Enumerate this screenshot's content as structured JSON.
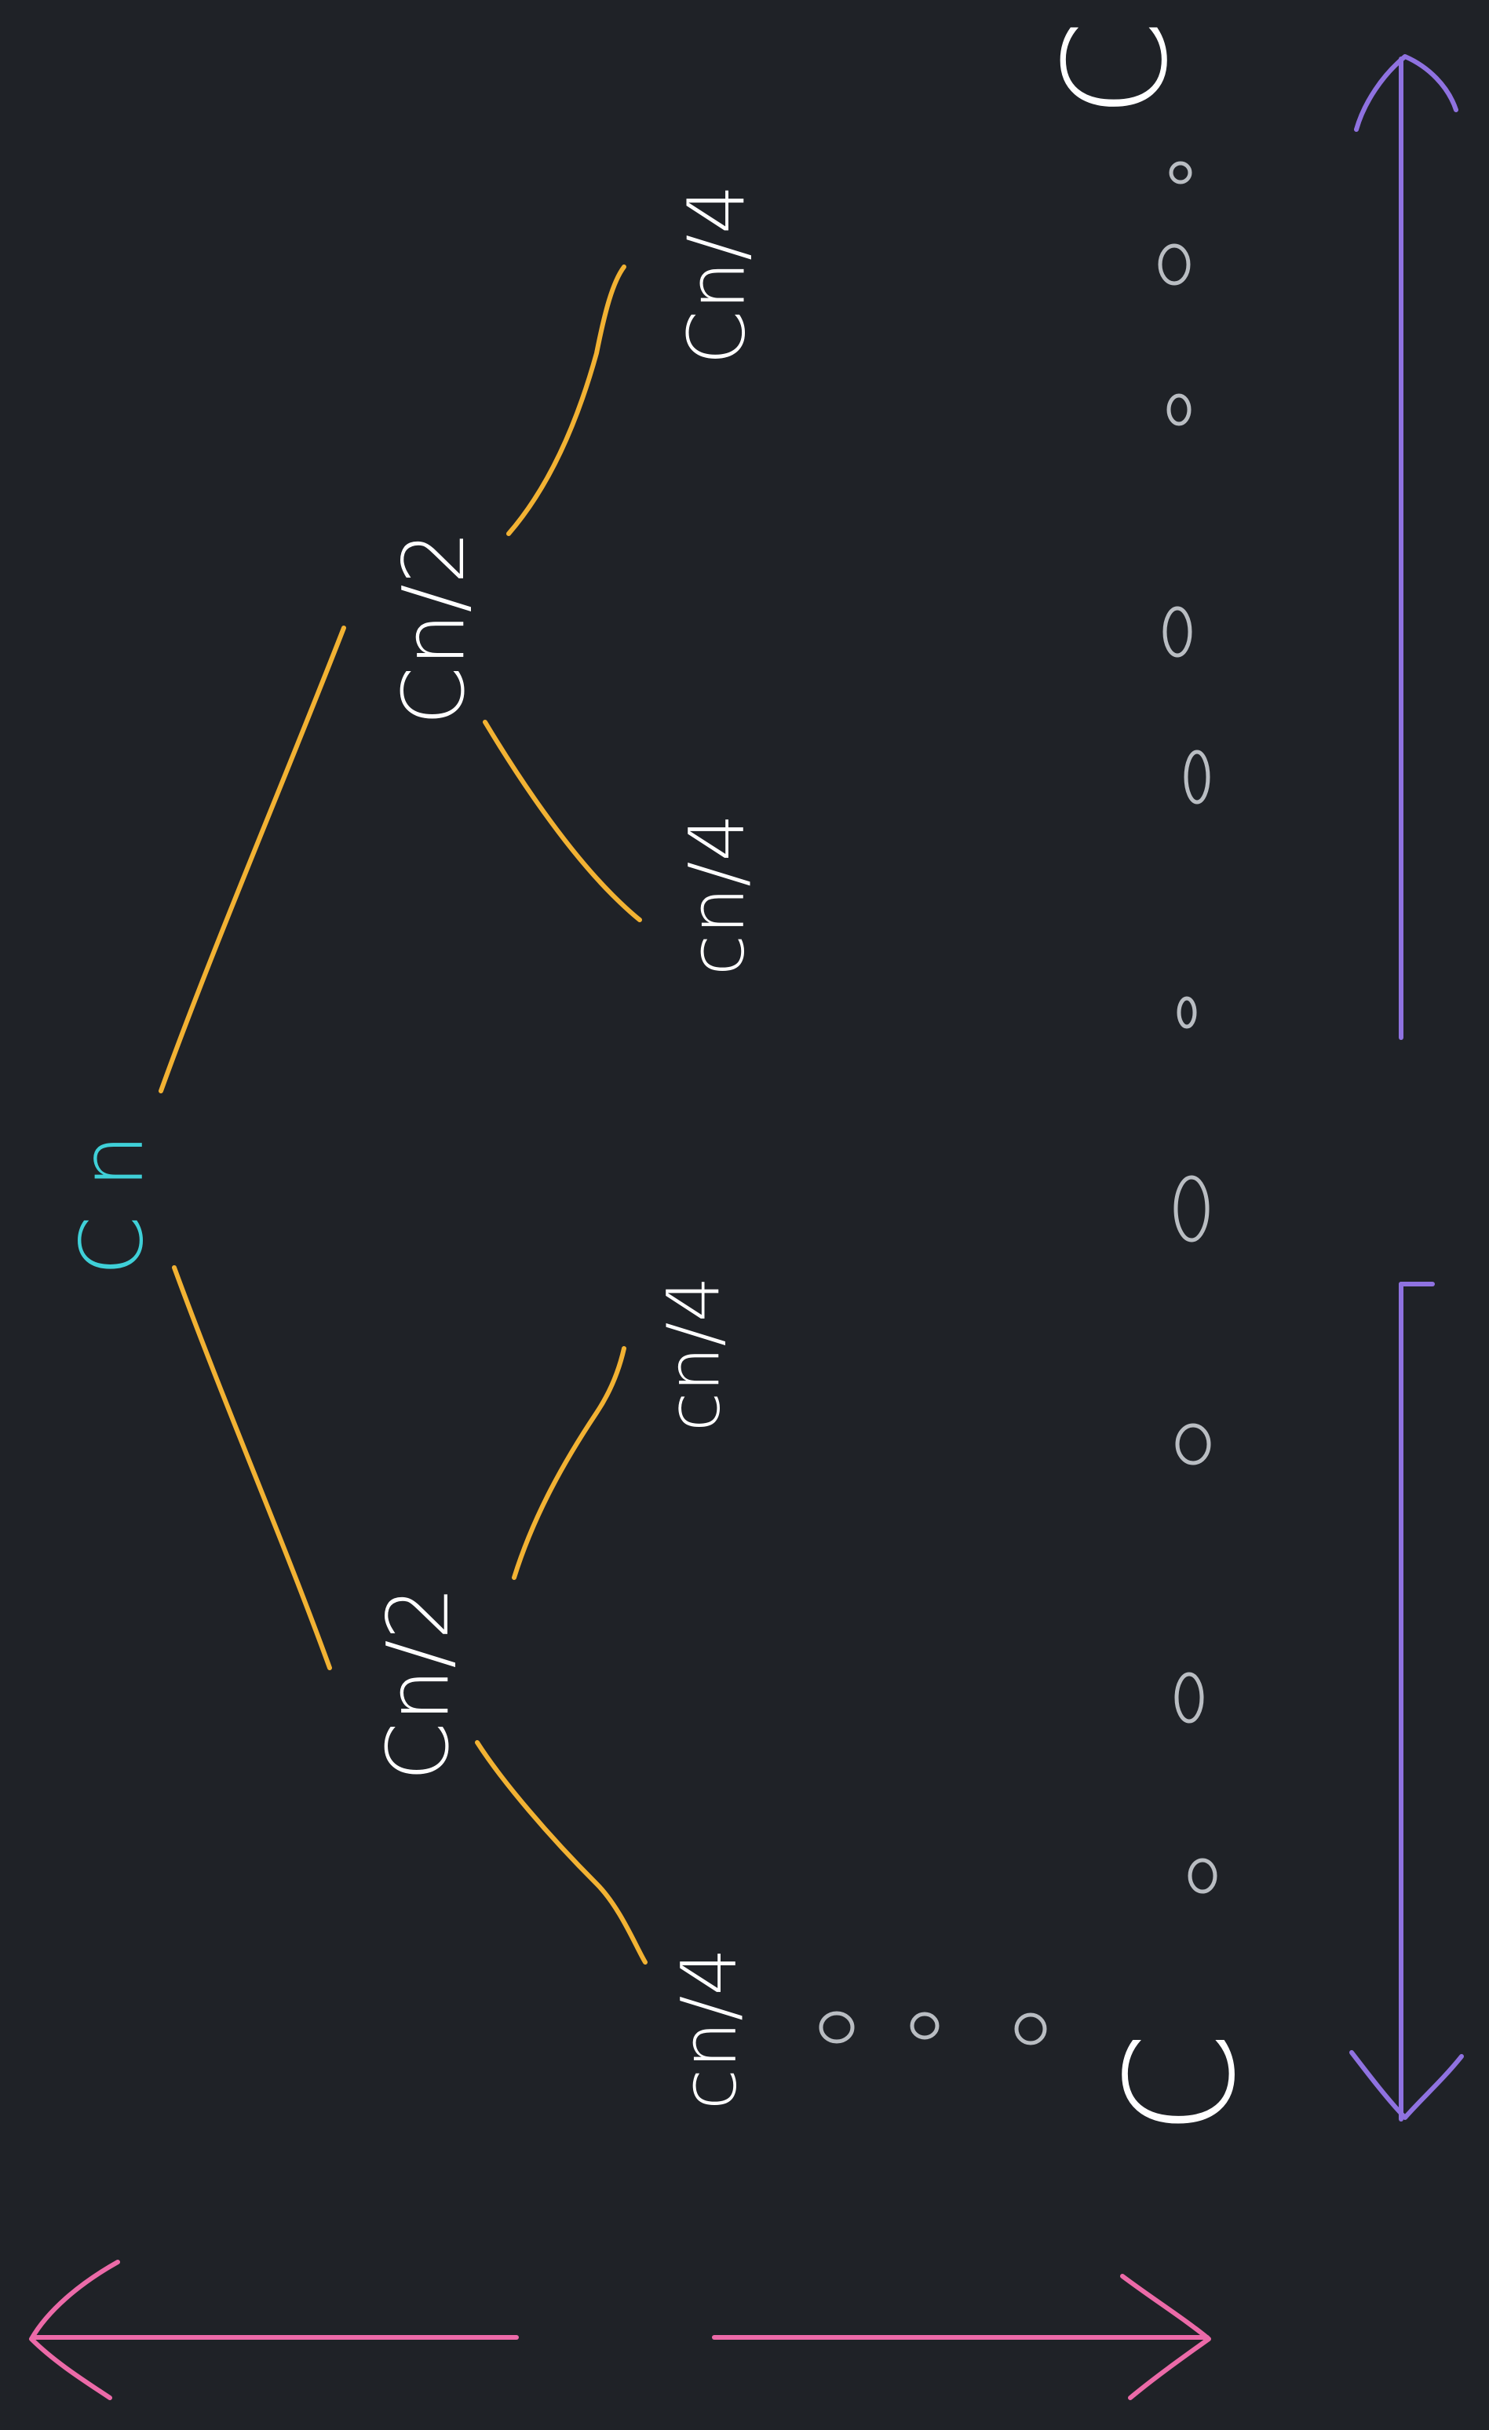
{
  "diagram": {
    "title": "",
    "colors": {
      "background": "#1f2227",
      "root_label": "#3fd0d8",
      "node_label": "#ffffff",
      "edge": "#f2b233",
      "dots": "#b9bdc2",
      "leaf_label": "#ffffff",
      "width_arrow": "#ec6aa8",
      "height_arrow": "#8f72e0"
    },
    "root": {
      "label": "C n"
    },
    "level1": [
      {
        "label": "Cn/2"
      },
      {
        "label": "Cn/2"
      }
    ],
    "level2": [
      {
        "label": "cn/4"
      },
      {
        "label": "cn/4"
      },
      {
        "label": "cn/4"
      },
      {
        "label": "Cn/4"
      }
    ],
    "leaves": {
      "first": "C",
      "last": "C",
      "dot_count": 13
    },
    "edges": [
      {
        "from": "C n",
        "to": "Cn/2 (left)"
      },
      {
        "from": "C n",
        "to": "Cn/2 (right)"
      },
      {
        "from": "Cn/2 (left)",
        "to": "cn/4 (a)"
      },
      {
        "from": "Cn/2 (left)",
        "to": "cn/4 (b)"
      },
      {
        "from": "Cn/2 (right)",
        "to": "cn/4 (c)"
      },
      {
        "from": "Cn/2 (right)",
        "to": "Cn/4 (d)"
      }
    ],
    "icons": [
      "double-headed-arrow-icon",
      "double-headed-arrow-icon"
    ]
  }
}
